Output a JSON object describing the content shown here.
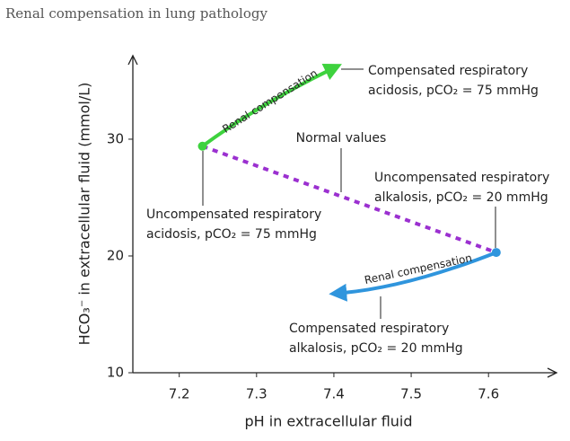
{
  "chart_data": {
    "type": "line",
    "title": "Renal compensation in lung pathology",
    "x_label": "pH in extracellular fluid",
    "y_label": "HCO₃⁻ in extracellular fluid (mmol/L)",
    "xlim": [
      7.14,
      7.688
    ],
    "ylim": [
      10,
      37.15
    ],
    "xticks": [
      7.2,
      7.3,
      7.4,
      7.5,
      7.6
    ],
    "yticks": [
      10,
      20,
      30
    ],
    "series": [
      {
        "name": "Normal values",
        "color": "#9b30d0",
        "x": [
          7.23,
          7.61
        ],
        "values": [
          29.4,
          20.3
        ]
      },
      {
        "name": "Renal compensation",
        "color": "#3ed23e",
        "x": [
          7.23,
          7.31,
          7.4
        ],
        "values": [
          29.4,
          32.9,
          36.1
        ]
      },
      {
        "name": "Renal compensation",
        "color": "#2f95dd",
        "x": [
          7.61,
          7.5,
          7.405
        ],
        "values": [
          20.3,
          17.9,
          16.8
        ]
      }
    ],
    "annotations": [
      {
        "lines": [
          "Compensated respiratory",
          "acidosis, pCO₂ = 75 mmHg"
        ]
      },
      {
        "lines": [
          "Uncompensated respiratory",
          "alkalosis, pCO₂ = 20 mmHg"
        ]
      },
      {
        "lines": [
          "Uncompensated respiratory",
          "acidosis, pCO₂ = 75 mmHg"
        ]
      },
      {
        "lines": [
          "Compensated respiratory",
          "alkalosis, pCO₂ = 20 mmHg"
        ]
      }
    ]
  }
}
